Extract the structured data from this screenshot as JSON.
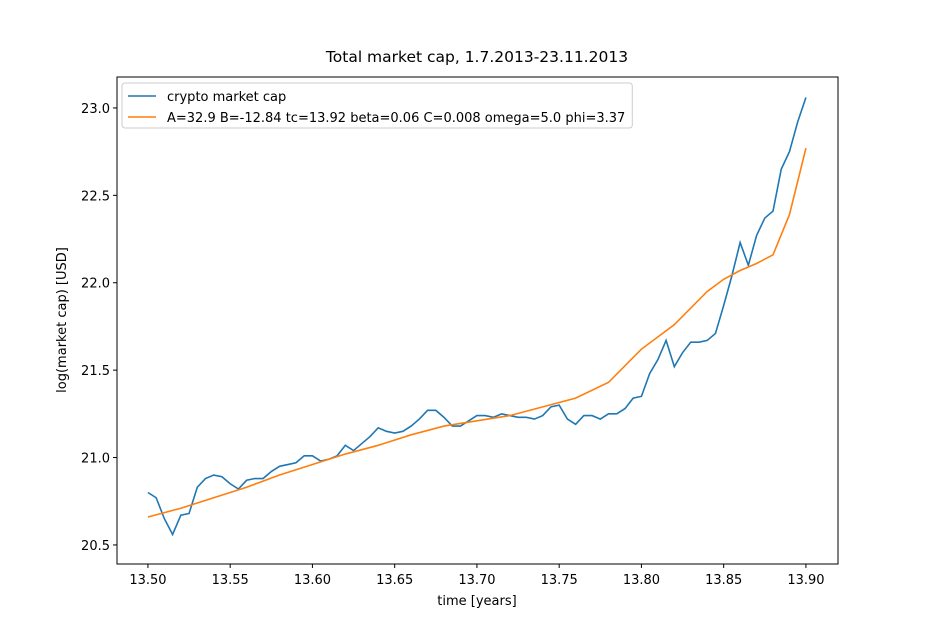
{
  "chart_data": {
    "type": "line",
    "title": "Total market cap, 1.7.2013-23.11.2013",
    "x_label": "time [years]",
    "y_label": "log(market cap) [USD]",
    "xlim": [
      13.4812,
      13.9195
    ],
    "ylim": [
      20.391,
      23.177
    ],
    "xticks": [
      {
        "value": 13.5,
        "label": "13.50"
      },
      {
        "value": 13.55,
        "label": "13.55"
      },
      {
        "value": 13.6,
        "label": "13.60"
      },
      {
        "value": 13.65,
        "label": "13.65"
      },
      {
        "value": 13.7,
        "label": "13.70"
      },
      {
        "value": 13.75,
        "label": "13.75"
      },
      {
        "value": 13.8,
        "label": "13.80"
      },
      {
        "value": 13.85,
        "label": "13.85"
      },
      {
        "value": 13.9,
        "label": "13.90"
      }
    ],
    "yticks": [
      20.5,
      {
        "value": 21,
        "label": "21.0"
      },
      21.5,
      {
        "value": 22,
        "label": "22.0"
      },
      22.5,
      {
        "value": 23,
        "label": "23.0"
      }
    ],
    "legend": "upper left",
    "series": [
      {
        "name": "crypto market cap",
        "color": "#1f77b4",
        "x": [
          13.5,
          13.505,
          13.51,
          13.515,
          13.52,
          13.525,
          13.53,
          13.535,
          13.54,
          13.545,
          13.55,
          13.555,
          13.56,
          13.565,
          13.57,
          13.575,
          13.58,
          13.585,
          13.59,
          13.595,
          13.6,
          13.605,
          13.61,
          13.615,
          13.62,
          13.625,
          13.63,
          13.635,
          13.64,
          13.645,
          13.65,
          13.655,
          13.66,
          13.665,
          13.67,
          13.675,
          13.68,
          13.685,
          13.69,
          13.695,
          13.7,
          13.705,
          13.71,
          13.715,
          13.72,
          13.725,
          13.73,
          13.735,
          13.74,
          13.745,
          13.75,
          13.755,
          13.76,
          13.765,
          13.77,
          13.775,
          13.78,
          13.785,
          13.79,
          13.795,
          13.8,
          13.805,
          13.81,
          13.815,
          13.82,
          13.825,
          13.83,
          13.835,
          13.84,
          13.845,
          13.85,
          13.855,
          13.86,
          13.865,
          13.87,
          13.875,
          13.88,
          13.885,
          13.89,
          13.895,
          13.9
        ],
        "values": [
          20.8,
          20.77,
          20.65,
          20.56,
          20.67,
          20.68,
          20.83,
          20.88,
          20.9,
          20.89,
          20.85,
          20.82,
          20.87,
          20.88,
          20.88,
          20.92,
          20.95,
          20.96,
          20.97,
          21.01,
          21.01,
          20.98,
          20.99,
          21.01,
          21.07,
          21.04,
          21.08,
          21.12,
          21.17,
          21.15,
          21.14,
          21.15,
          21.18,
          21.22,
          21.27,
          21.27,
          21.23,
          21.18,
          21.18,
          21.21,
          21.24,
          21.24,
          21.23,
          21.25,
          21.24,
          21.23,
          21.23,
          21.22,
          21.24,
          21.29,
          21.3,
          21.22,
          21.19,
          21.24,
          21.24,
          21.22,
          21.25,
          21.25,
          21.28,
          21.34,
          21.35,
          21.48,
          21.56,
          21.67,
          21.52,
          21.6,
          21.66,
          21.66,
          21.67,
          21.71,
          21.87,
          22.04,
          22.23,
          22.1,
          22.27,
          22.37,
          22.41,
          22.65,
          22.75,
          22.92,
          23.06
        ]
      },
      {
        "name": "A=32.9 B=-12.84 tc=13.92 beta=0.06 C=0.008 omega=5.0 phi=3.37",
        "color": "#ff7f0e",
        "x": [
          13.5,
          13.52,
          13.54,
          13.56,
          13.58,
          13.6,
          13.62,
          13.64,
          13.66,
          13.68,
          13.7,
          13.72,
          13.74,
          13.76,
          13.78,
          13.8,
          13.82,
          13.84,
          13.85,
          13.86,
          13.87,
          13.88,
          13.89,
          13.9
        ],
        "values": [
          20.66,
          20.71,
          20.77,
          20.83,
          20.9,
          20.96,
          21.02,
          21.07,
          21.13,
          21.18,
          21.21,
          21.24,
          21.29,
          21.34,
          21.43,
          21.62,
          21.76,
          21.95,
          22.02,
          22.07,
          22.11,
          22.16,
          22.39,
          22.77
        ]
      }
    ]
  }
}
